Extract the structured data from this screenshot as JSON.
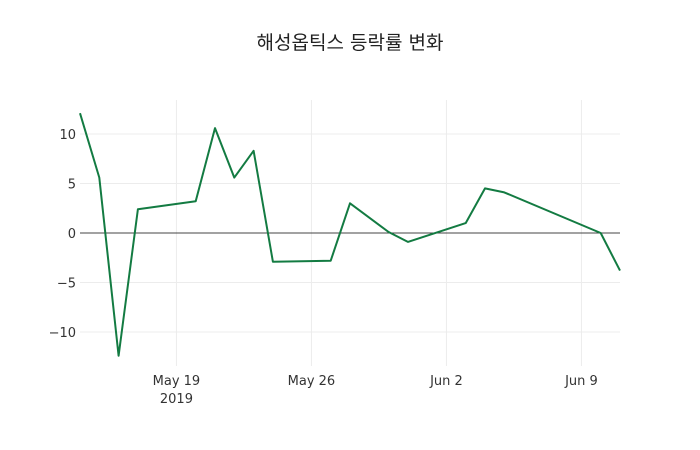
{
  "chart_data": {
    "type": "line",
    "title": "해성옵틱스 등락률 변화",
    "xlabel": "",
    "ylabel": "",
    "ylim": [
      -13.5,
      13.5
    ],
    "grid": true,
    "legend": "none",
    "line_color": "#137b42",
    "x": [
      "2019-05-14",
      "2019-05-15",
      "2019-05-16",
      "2019-05-17",
      "2019-05-20",
      "2019-05-21",
      "2019-05-22",
      "2019-05-23",
      "2019-05-24",
      "2019-05-27",
      "2019-05-28",
      "2019-05-30",
      "2019-05-31",
      "2019-06-03",
      "2019-06-04",
      "2019-06-05",
      "2019-06-10",
      "2019-06-11"
    ],
    "series": [
      {
        "name": "등락률",
        "values": [
          12.1,
          5.6,
          -12.4,
          2.4,
          3.2,
          10.6,
          5.6,
          8.3,
          -2.9,
          -2.8,
          3.0,
          0.1,
          -0.9,
          1.0,
          4.5,
          4.1,
          0.0,
          -3.8
        ]
      }
    ],
    "y_ticks": [
      -10,
      -5,
      0,
      5,
      10
    ],
    "y_tick_labels": [
      "−10",
      "−5",
      "0",
      "5",
      "10"
    ],
    "x_ticks": [
      {
        "date": "2019-05-19",
        "label": "May 19",
        "sublabel": "2019"
      },
      {
        "date": "2019-05-26",
        "label": "May 26",
        "sublabel": ""
      },
      {
        "date": "2019-06-02",
        "label": "Jun 2",
        "sublabel": ""
      },
      {
        "date": "2019-06-09",
        "label": "Jun 9",
        "sublabel": ""
      }
    ]
  }
}
